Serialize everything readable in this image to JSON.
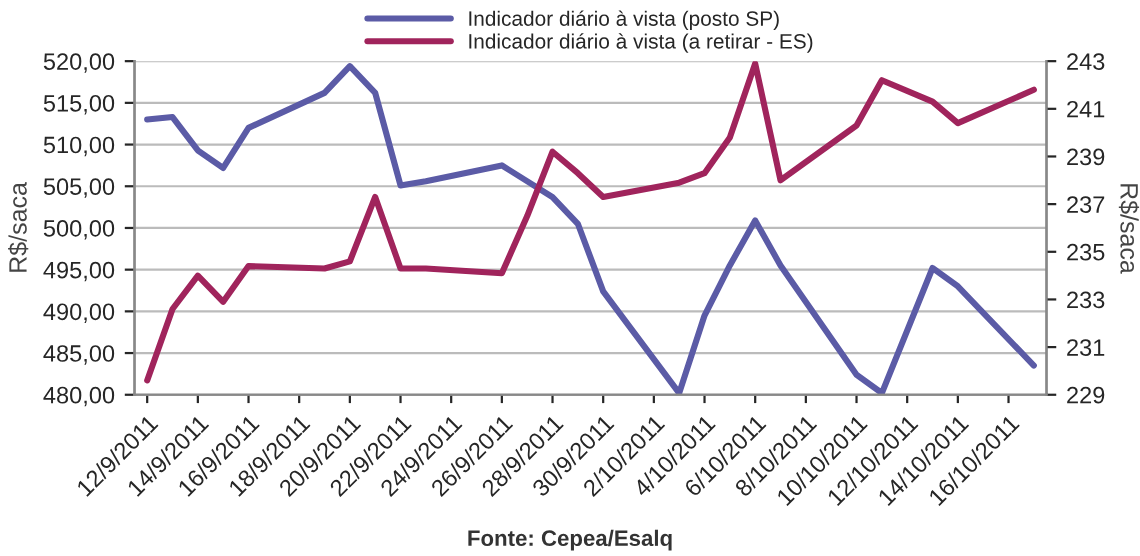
{
  "chart_data": {
    "type": "line",
    "annotations": [
      "Fonte: Cepea/Esalq"
    ],
    "ylabel": "R$/saca",
    "y2label": "R$/saca",
    "x": [
      "2011-09-12",
      "2011-09-13",
      "2011-09-14",
      "2011-09-15",
      "2011-09-16",
      "2011-09-19",
      "2011-09-20",
      "2011-09-21",
      "2011-09-22",
      "2011-09-23",
      "2011-09-26",
      "2011-09-27",
      "2011-09-28",
      "2011-09-29",
      "2011-09-30",
      "2011-10-03",
      "2011-10-04",
      "2011-10-05",
      "2011-10-06",
      "2011-10-07",
      "2011-10-10",
      "2011-10-11",
      "2011-10-13",
      "2011-10-14",
      "2011-10-17"
    ],
    "series": [
      {
        "name": "Indicador diário à vista (posto SP)",
        "color": "#5b5ba6",
        "values": [
          513.0,
          513.3,
          509.3,
          507.2,
          512.0,
          516.2,
          519.4,
          516.2,
          505.1,
          505.6,
          507.5,
          505.6,
          503.7,
          500.5,
          492.4,
          480.2,
          489.5,
          495.5,
          500.9,
          495.5,
          482.4,
          480.2,
          495.2,
          493.0,
          483.5
        ]
      },
      {
        "name": "Indicador diário à vista (a retirar - ES)",
        "color": "#a0245c",
        "axis": "y2",
        "values": [
          229.6,
          232.6,
          234.0,
          232.9,
          234.4,
          234.3,
          234.6,
          237.3,
          234.3,
          234.3,
          234.1,
          236.5,
          239.2,
          238.3,
          237.3,
          237.9,
          238.3,
          239.8,
          242.9,
          238.0,
          240.3,
          242.2,
          241.3,
          240.4,
          241.8
        ]
      }
    ],
    "xlim": [
      "2011-09-11T12:00",
      "2011-10-17T12:00"
    ],
    "xticks": [
      {
        "value": "2011-09-12",
        "label": "12/9/2011"
      },
      {
        "value": "2011-09-14",
        "label": "14/9/2011"
      },
      {
        "value": "2011-09-16",
        "label": "16/9/2011"
      },
      {
        "value": "2011-09-18",
        "label": "18/9/2011"
      },
      {
        "value": "2011-09-20",
        "label": "20/9/2011"
      },
      {
        "value": "2011-09-22",
        "label": "22/9/2011"
      },
      {
        "value": "2011-09-24",
        "label": "24/9/2011"
      },
      {
        "value": "2011-09-26",
        "label": "26/9/2011"
      },
      {
        "value": "2011-09-28",
        "label": "28/9/2011"
      },
      {
        "value": "2011-09-30",
        "label": "30/9/2011"
      },
      {
        "value": "2011-10-02",
        "label": "2/10/2011"
      },
      {
        "value": "2011-10-04",
        "label": "4/10/2011"
      },
      {
        "value": "2011-10-06",
        "label": "6/10/2011"
      },
      {
        "value": "2011-10-08",
        "label": "8/10/2011"
      },
      {
        "value": "2011-10-10",
        "label": "10/10/2011"
      },
      {
        "value": "2011-10-12",
        "label": "12/10/2011"
      },
      {
        "value": "2011-10-14",
        "label": "14/10/2011"
      },
      {
        "value": "2011-10-16",
        "label": "16/10/2011"
      }
    ],
    "ylim": [
      480,
      520
    ],
    "yticks": [
      {
        "value": 480,
        "label": "480,00"
      },
      {
        "value": 485,
        "label": "485,00"
      },
      {
        "value": 490,
        "label": "490,00"
      },
      {
        "value": 495,
        "label": "495,00"
      },
      {
        "value": 500,
        "label": "500,00"
      },
      {
        "value": 505,
        "label": "505,00"
      },
      {
        "value": 510,
        "label": "510,00"
      },
      {
        "value": 515,
        "label": "515,00"
      },
      {
        "value": 520,
        "label": "520,00"
      }
    ],
    "y2lim": [
      229,
      243
    ],
    "y2ticks": [
      229,
      231,
      233,
      235,
      237,
      239,
      241,
      243
    ],
    "grid": "y",
    "legend": "top",
    "marker": "none",
    "line_style": "solid"
  }
}
